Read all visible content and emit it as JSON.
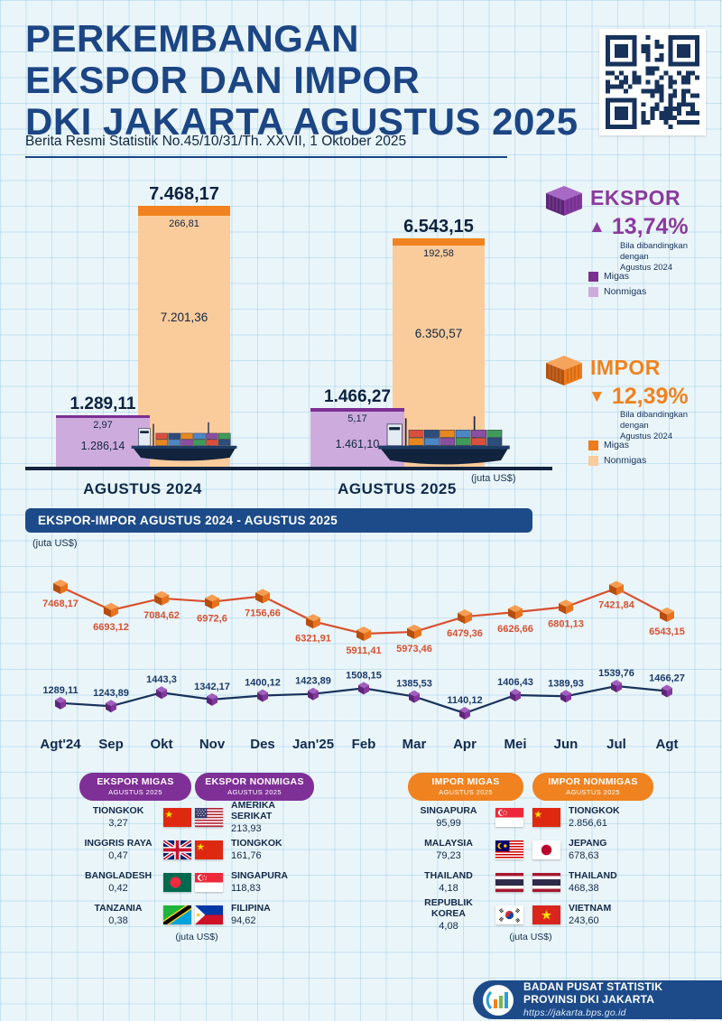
{
  "colors": {
    "title_blue": "#1C4584",
    "banner_blue": "#1D4B8A",
    "purple": "#8B3A9E",
    "purple_dark": "#7C2F93",
    "purple_light": "#CEABDD",
    "orange": "#F0821F",
    "orange_dark": "#E8731E",
    "orange_light": "#FACB9B",
    "impor_line": "#D8502F",
    "ekspor_line": "#17325B"
  },
  "header": {
    "title_lines": [
      "PERKEMBANGAN",
      "EKSPOR DAN IMPOR",
      "DKI JAKARTA AGUSTUS 2025"
    ],
    "subtitle": "Berita Resmi Statistik No.45/10/31/Th. XXVII, 1 Oktober 2025"
  },
  "bar_section": {
    "unit": "(juta US$)",
    "groups": [
      {
        "label": "AGUSTUS 2024",
        "ekspor": {
          "total": "1.289,11",
          "migas": "2,97",
          "nonmigas": "1.286,14"
        },
        "impor": {
          "total": "7.468,17",
          "migas": "266,81",
          "nonmigas": "7.201,36"
        }
      },
      {
        "label": "AGUSTUS 2025",
        "ekspor": {
          "total": "1.466,27",
          "migas": "5,17",
          "nonmigas": "1.461,10"
        },
        "impor": {
          "total": "6.543,15",
          "migas": "192,58",
          "nonmigas": "6.350,57"
        }
      }
    ]
  },
  "ekspor_panel": {
    "title": "EKSPOR",
    "direction": "up",
    "arrow": "▲",
    "pct": "13,74%",
    "note": "Bila dibandingkan\ndengan\nAgustus 2024",
    "legend": [
      "Migas",
      "Nonmigas"
    ]
  },
  "impor_panel": {
    "title": "IMPOR",
    "direction": "down",
    "arrow": "▼",
    "pct": "12,39%",
    "note": "Bila dibandingkan\ndengan\nAgustus 2024",
    "legend": [
      "Migas",
      "Nonmigas"
    ]
  },
  "line_section": {
    "banner": "EKSPOR-IMPOR AGUSTUS 2024 - AGUSTUS 2025",
    "unit": "(juta US$)"
  },
  "chart_data": [
    {
      "type": "bar",
      "title": "Ekspor dan Impor DKI Jakarta Agustus 2024 vs Agustus 2025",
      "categories": [
        "AGUSTUS 2024",
        "AGUSTUS 2025"
      ],
      "series": [
        {
          "name": "Ekspor Migas",
          "values": [
            2.97,
            5.17
          ]
        },
        {
          "name": "Ekspor Nonmigas",
          "values": [
            1286.14,
            1461.1
          ]
        },
        {
          "name": "Impor Migas",
          "values": [
            266.81,
            192.58
          ]
        },
        {
          "name": "Impor Nonmigas",
          "values": [
            7201.36,
            6350.57
          ]
        }
      ],
      "totals": {
        "ekspor": [
          1289.11,
          1466.27
        ],
        "impor": [
          7468.17,
          6543.15
        ]
      },
      "ekspor_change_pct": 13.74,
      "impor_change_pct": -12.39,
      "unit": "juta US$"
    },
    {
      "type": "line",
      "title": "EKSPOR-IMPOR AGUSTUS 2024 - AGUSTUS 2025",
      "x": [
        "Agt'24",
        "Sep",
        "Okt",
        "Nov",
        "Des",
        "Jan'25",
        "Feb",
        "Mar",
        "Apr",
        "Mei",
        "Jun",
        "Jul",
        "Agt"
      ],
      "series": [
        {
          "name": "Impor",
          "color": "#D8502F",
          "values": [
            7468.17,
            6693.12,
            7084.62,
            6972.6,
            7156.66,
            6321.91,
            5911.41,
            5973.46,
            6479.36,
            6626.66,
            6801.13,
            7421.84,
            6543.15
          ],
          "labels": [
            "7468,17",
            "6693,12",
            "7084,62",
            "6972,6",
            "7156,66",
            "6321,91",
            "5911,41",
            "5973,46",
            "6479,36",
            "6626,66",
            "6801,13",
            "7421,84",
            "6543,15"
          ]
        },
        {
          "name": "Ekspor",
          "color": "#17325B",
          "values": [
            1289.11,
            1243.89,
            1443.3,
            1342.17,
            1400.12,
            1423.89,
            1508.15,
            1385.53,
            1140.12,
            1406.43,
            1389.93,
            1539.76,
            1466.27
          ],
          "labels": [
            "1289,11",
            "1243,89",
            "1443,3",
            "1342,17",
            "1400,12",
            "1423,89",
            "1508,15",
            "1385,53",
            "1140,12",
            "1406,43",
            "1389,93",
            "1539,76",
            "1466,27"
          ]
        }
      ],
      "unit": "juta US$",
      "legend_position": "none",
      "grid": false
    }
  ],
  "tables": [
    {
      "id": "ekspor-migas",
      "title": "EKSPOR MIGAS",
      "subtitle": "AGUSTUS 2025",
      "theme": "purple",
      "flag_side": "right",
      "rows": [
        {
          "country": "TIONGKOK",
          "value": "3,27",
          "flag": "cn"
        },
        {
          "country": "INGGRIS RAYA",
          "value": "0,47",
          "flag": "gb"
        },
        {
          "country": "BANGLADESH",
          "value": "0,42",
          "flag": "bd"
        },
        {
          "country": "TANZANIA",
          "value": "0,38",
          "flag": "tz"
        }
      ]
    },
    {
      "id": "ekspor-nonmigas",
      "title": "EKSPOR NONMIGAS",
      "subtitle": "AGUSTUS 2025",
      "theme": "purple",
      "flag_side": "left",
      "rows": [
        {
          "country": "AMERIKA SERIKAT",
          "value": "213,93",
          "flag": "us"
        },
        {
          "country": "TIONGKOK",
          "value": "161,76",
          "flag": "cn"
        },
        {
          "country": "SINGAPURA",
          "value": "118,83",
          "flag": "sg"
        },
        {
          "country": "FILIPINA",
          "value": "94,62",
          "flag": "ph"
        }
      ]
    },
    {
      "id": "impor-migas",
      "title": "IMPOR MIGAS",
      "subtitle": "AGUSTUS 2025",
      "theme": "orange",
      "flag_side": "right",
      "rows": [
        {
          "country": "SINGAPURA",
          "value": "95,99",
          "flag": "sg"
        },
        {
          "country": "MALAYSIA",
          "value": "79,23",
          "flag": "my"
        },
        {
          "country": "THAILAND",
          "value": "4,18",
          "flag": "th"
        },
        {
          "country": "REPUBLIK KOREA",
          "value": "4,08",
          "flag": "kr"
        }
      ]
    },
    {
      "id": "impor-nonmigas",
      "title": "IMPOR NONMIGAS",
      "subtitle": "AGUSTUS 2025",
      "theme": "orange",
      "flag_side": "left",
      "rows": [
        {
          "country": "TIONGKOK",
          "value": "2.856,61",
          "flag": "cn"
        },
        {
          "country": "JEPANG",
          "value": "678,63",
          "flag": "jp"
        },
        {
          "country": "THAILAND",
          "value": "468,38",
          "flag": "th"
        },
        {
          "country": "VIETNAM",
          "value": "243,60",
          "flag": "vn"
        }
      ]
    }
  ],
  "tables_unit_left": "(juta US$)",
  "tables_unit_right": "(juta US$)",
  "footer": {
    "org_line1": "BADAN PUSAT STATISTIK",
    "org_line2": "PROVINSI DKI JAKARTA",
    "url": "https://jakarta.bps.go.id"
  }
}
